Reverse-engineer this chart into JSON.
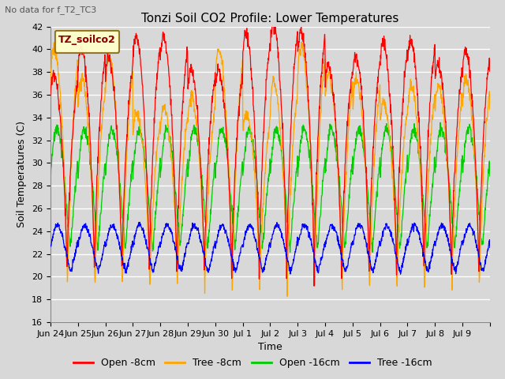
{
  "title": "Tonzi Soil CO2 Profile: Lower Temperatures",
  "subtitle": "No data for f_T2_TC3",
  "xlabel": "Time",
  "ylabel": "Soil Temperatures (C)",
  "ylim": [
    16,
    42
  ],
  "yticks": [
    16,
    18,
    20,
    22,
    24,
    26,
    28,
    30,
    32,
    34,
    36,
    38,
    40,
    42
  ],
  "xlim": [
    0,
    16
  ],
  "xtick_positions": [
    0,
    1,
    2,
    3,
    4,
    5,
    6,
    7,
    8,
    9,
    10,
    11,
    12,
    13,
    14,
    15,
    16
  ],
  "xtick_labels": [
    "Jun 24",
    "Jun 25",
    "Jun 26",
    "Jun 27",
    "Jun 28",
    "Jun 29",
    "Jun 30",
    "Jul 1",
    "Jul 2",
    "Jul 3",
    "Jul 4",
    "Jul 5",
    "Jul 6",
    "Jul 7",
    "Jul 8",
    "Jul 9",
    ""
  ],
  "colors": {
    "open_8cm": "#FF0000",
    "tree_8cm": "#FFA500",
    "open_16cm": "#00CC00",
    "tree_16cm": "#0000FF"
  },
  "legend_label": "TZ_soilco2",
  "legend_entries": [
    "Open -8cm",
    "Tree -8cm",
    "Open -16cm",
    "Tree -16cm"
  ],
  "bg_color": "#D8D8D8",
  "title_fontsize": 11,
  "subtitle_fontsize": 8,
  "axis_fontsize": 9,
  "tick_fontsize": 8,
  "legend_fontsize": 9
}
